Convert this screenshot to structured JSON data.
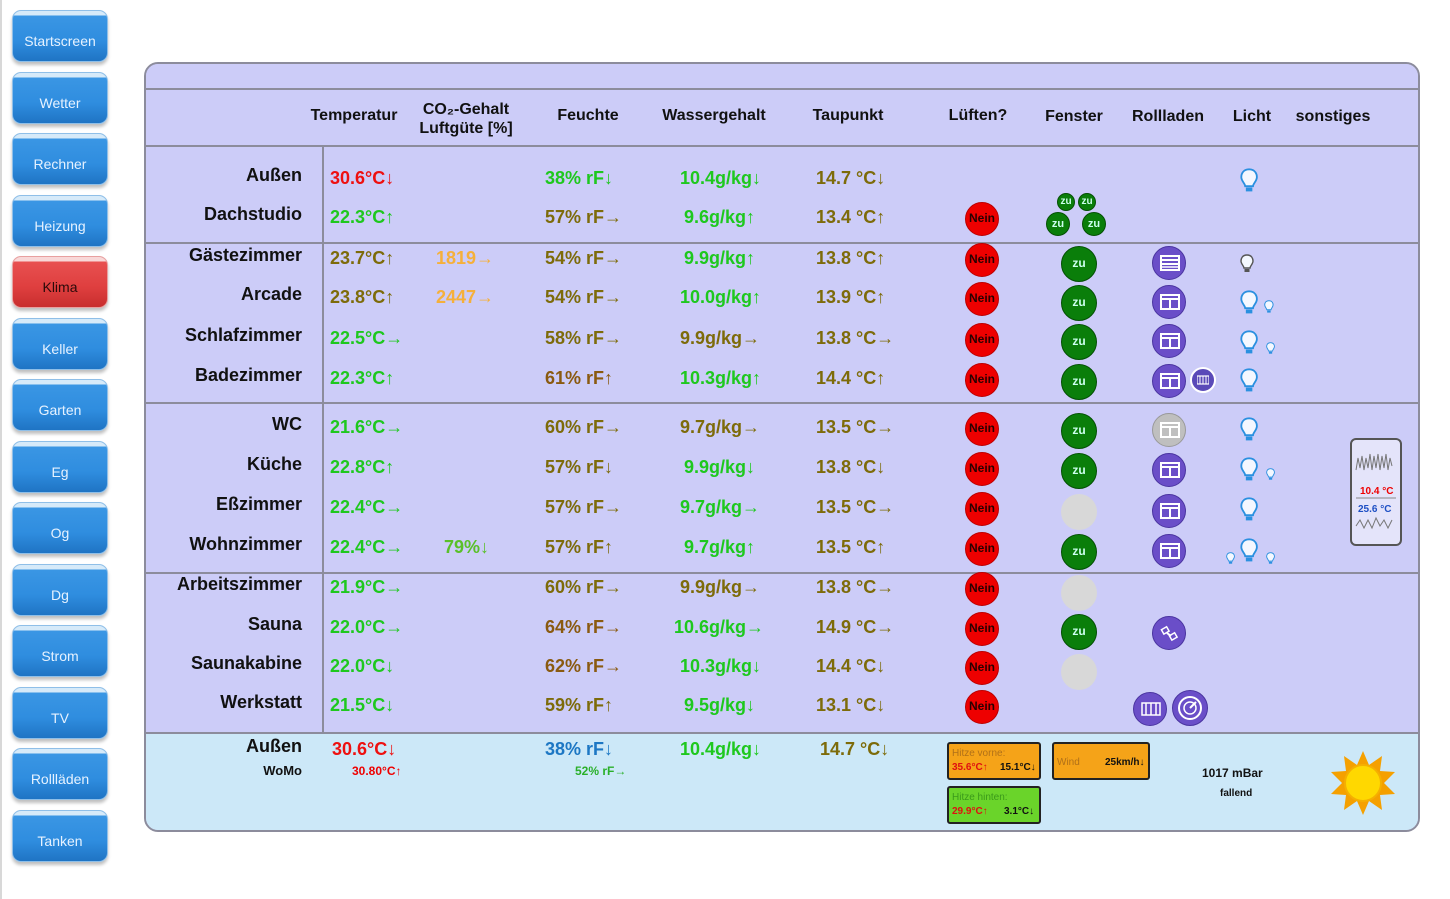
{
  "nav": [
    "Startscreen",
    "Wetter",
    "Rechner",
    "Heizung",
    "Klima",
    "Keller",
    "Garten",
    "Eg",
    "Og",
    "Dg",
    "Strom",
    "TV",
    "Rollläden",
    "Tanken"
  ],
  "nav_active": "Klima",
  "headers": {
    "temp": "Temperatur",
    "co2_1": "CO₂-Gehalt",
    "co2_2": "Luftgüte [%]",
    "hum": "Feuchte",
    "water": "Wassergehalt",
    "dew": "Taupunkt",
    "air": "Lüften?",
    "win": "Fenster",
    "roll": "Rollladen",
    "light": "Licht",
    "misc": "sonstiges"
  },
  "rooms": [
    {
      "name": "Außen",
      "temp": "30.6°C↓",
      "co2": "",
      "hum": "38% rF↓",
      "water": "10.4g/kg↓",
      "dew": "14.7 °C↓",
      "air": ""
    },
    {
      "name": "Dachstudio",
      "temp": "22.3°C↑",
      "co2": "",
      "hum": "57% rF→",
      "water": "9.6g/kg↑",
      "dew": "13.4 °C↑",
      "air": "Nein"
    },
    {
      "name": "Gästezimmer",
      "temp": "23.7°C↑",
      "co2": "1819→",
      "hum": "54% rF→",
      "water": "9.9g/kg↑",
      "dew": "13.8 °C↑",
      "air": "Nein"
    },
    {
      "name": "Arcade",
      "temp": "23.8°C↑",
      "co2": "2447→",
      "hum": "54% rF→",
      "water": "10.0g/kg↑",
      "dew": "13.9 °C↑",
      "air": "Nein"
    },
    {
      "name": "Schlafzimmer",
      "temp": "22.5°C→",
      "co2": "",
      "hum": "58% rF→",
      "water": "9.9g/kg→",
      "dew": "13.8 °C→",
      "air": "Nein"
    },
    {
      "name": "Badezimmer",
      "temp": "22.3°C↑",
      "co2": "",
      "hum": "61% rF↑",
      "water": "10.3g/kg↑",
      "dew": "14.4 °C↑",
      "air": "Nein"
    },
    {
      "name": "WC",
      "temp": "21.6°C→",
      "co2": "",
      "hum": "60% rF→",
      "water": "9.7g/kg→",
      "dew": "13.5 °C→",
      "air": "Nein"
    },
    {
      "name": "Küche",
      "temp": "22.8°C↑",
      "co2": "",
      "hum": "57% rF↓",
      "water": "9.9g/kg↓",
      "dew": "13.8 °C↓",
      "air": "Nein"
    },
    {
      "name": "Eßzimmer",
      "temp": "22.4°C→",
      "co2": "",
      "hum": "57% rF→",
      "water": "9.7g/kg→",
      "dew": "13.5 °C→",
      "air": "Nein"
    },
    {
      "name": "Wohnzimmer",
      "temp": "22.4°C→",
      "co2": "79%↓",
      "hum": "57% rF↑",
      "water": "9.7g/kg↑",
      "dew": "13.5 °C↑",
      "air": "Nein"
    },
    {
      "name": "Arbeitszimmer",
      "temp": "21.9°C→",
      "co2": "",
      "hum": "60% rF→",
      "water": "9.9g/kg→",
      "dew": "13.8 °C→",
      "air": "Nein"
    },
    {
      "name": "Sauna",
      "temp": "22.0°C→",
      "co2": "",
      "hum": "64% rF→",
      "water": "10.6g/kg→",
      "dew": "14.9 °C→",
      "air": "Nein"
    },
    {
      "name": "Saunakabine",
      "temp": "22.0°C↓",
      "co2": "",
      "hum": "62% rF→",
      "water": "10.3g/kg↓",
      "dew": "14.4 °C↓",
      "air": "Nein"
    },
    {
      "name": "Werkstatt",
      "temp": "21.5°C↓",
      "co2": "",
      "hum": "59% rF↑",
      "water": "9.5g/kg↓",
      "dew": "13.1 °C↓",
      "air": "Nein"
    }
  ],
  "window_label": "zu",
  "bottom": {
    "name": "Außen",
    "sub": "WoMo",
    "temp": "30.6°C↓",
    "temp2": "30.80°C↑",
    "hum": "38% rF↓",
    "hum2": "52% rF→",
    "water": "10.4g/kg↓",
    "dew": "14.7 °C↓",
    "heat_front_label": "Hitze vorne:",
    "heat_front_val": "35.6°C↑",
    "heat_front_delta": "15.1°C↓",
    "heat_rear_label": "Hitze hinten:",
    "heat_rear_val": "29.9°C↑",
    "heat_rear_delta": "3.1°C↓",
    "wind_label": "Wind",
    "wind_val": "25km/h↓",
    "pressure": "1017 mBar",
    "pressure_trend": "fallend"
  },
  "widget": {
    "val_red": "10.4 °C",
    "val_blue": "25.6 °C"
  },
  "icons": {
    "bulb": "lightbulb-icon",
    "roll": "window-blind-icon",
    "sun": "sun-icon",
    "radiator": "radiator-icon",
    "satellite": "satellite-icon",
    "gauge": "gauge-icon"
  },
  "colors": {
    "panel_bg": "#ccccf8",
    "bottom_bg": "#cce8f8",
    "nav_blue": "#2f8ddf",
    "nav_active": "#df3f3f",
    "nein": "#ee0000",
    "zu": "#0a7e0a",
    "roll": "#6a4ec8"
  }
}
